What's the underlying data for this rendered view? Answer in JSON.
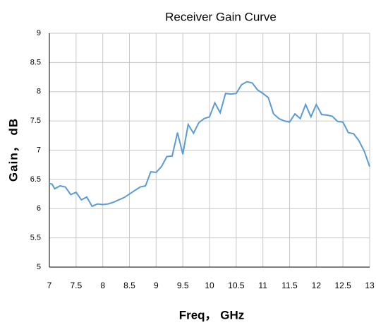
{
  "chart_data": {
    "type": "line",
    "title": "Receiver Gain Curve",
    "x_label": "Freq， GHz",
    "y_label": "Gain， dB",
    "x": [
      7.0,
      7.05,
      7.1,
      7.2,
      7.3,
      7.4,
      7.5,
      7.6,
      7.7,
      7.8,
      7.9,
      8.0,
      8.1,
      8.2,
      8.3,
      8.4,
      8.5,
      8.6,
      8.7,
      8.8,
      8.9,
      9.0,
      9.1,
      9.2,
      9.3,
      9.4,
      9.5,
      9.6,
      9.7,
      9.8,
      9.9,
      10.0,
      10.1,
      10.2,
      10.3,
      10.4,
      10.5,
      10.6,
      10.7,
      10.8,
      10.9,
      11.0,
      11.1,
      11.2,
      11.3,
      11.4,
      11.5,
      11.6,
      11.7,
      11.8,
      11.9,
      12.0,
      12.1,
      12.2,
      12.3,
      12.4,
      12.5,
      12.6,
      12.7,
      12.8,
      12.9,
      13.0
    ],
    "series": [
      {
        "name": "Gain",
        "color": "#5b9bd5",
        "values": [
          6.43,
          6.42,
          6.34,
          6.39,
          6.37,
          6.24,
          6.28,
          6.15,
          6.2,
          6.04,
          6.08,
          6.07,
          6.08,
          6.11,
          6.15,
          6.19,
          6.25,
          6.31,
          6.37,
          6.39,
          6.63,
          6.62,
          6.72,
          6.89,
          6.9,
          7.3,
          6.93,
          7.44,
          7.29,
          7.47,
          7.54,
          7.57,
          7.81,
          7.64,
          7.97,
          7.96,
          7.97,
          8.12,
          8.17,
          8.15,
          8.03,
          7.97,
          7.9,
          7.62,
          7.54,
          7.5,
          7.48,
          7.62,
          7.54,
          7.78,
          7.57,
          7.78,
          7.61,
          7.6,
          7.58,
          7.49,
          7.48,
          7.3,
          7.28,
          7.16,
          6.98,
          6.72
        ]
      }
    ],
    "xlim": [
      7,
      13
    ],
    "ylim": [
      5,
      9
    ],
    "xticks": [
      7,
      7.5,
      8,
      8.5,
      9,
      9.5,
      10,
      10.5,
      11,
      11.5,
      12,
      12.5,
      13
    ],
    "yticks": [
      5,
      5.5,
      6,
      6.5,
      7,
      7.5,
      8,
      8.5,
      9
    ],
    "grid": true
  }
}
